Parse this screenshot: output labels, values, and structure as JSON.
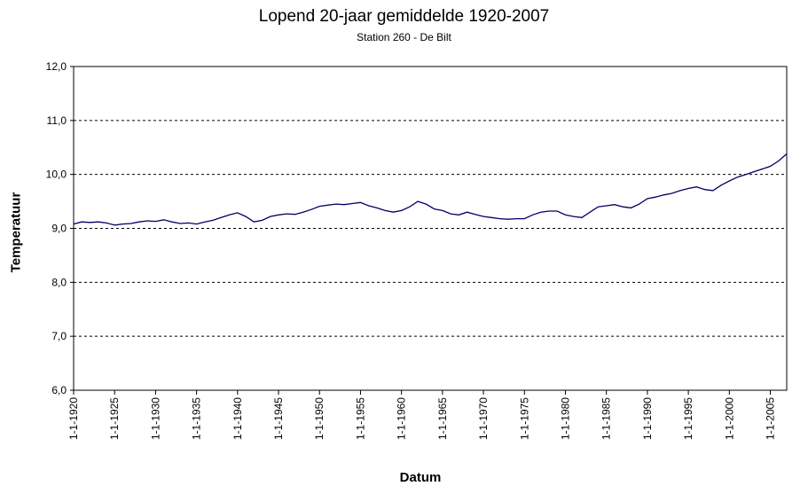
{
  "chart_data": {
    "type": "line",
    "title": "Lopend 20-jaar gemiddelde 1920-2007",
    "subtitle": "Station 260 - De Bilt",
    "xlabel": "Datum",
    "ylabel": "Temperatuur",
    "ylim": [
      6.0,
      12.0
    ],
    "y_ticks": [
      "6,0",
      "7,0",
      "8,0",
      "9,0",
      "10,0",
      "11,0",
      "12,0"
    ],
    "x_ticks": [
      "1-1-1920",
      "1-1-1925",
      "1-1-1930",
      "1-1-1935",
      "1-1-1940",
      "1-1-1945",
      "1-1-1950",
      "1-1-1955",
      "1-1-1960",
      "1-1-1965",
      "1-1-1970",
      "1-1-1975",
      "1-1-1980",
      "1-1-1985",
      "1-1-1990",
      "1-1-1995",
      "1-1-2000",
      "1-1-2005"
    ],
    "xlim": [
      "1-1-1920",
      "1-1-2007"
    ],
    "grid": "horizontal dashed",
    "line_color": "#000066",
    "series": [
      {
        "x": [
          1920,
          1921,
          1922,
          1923,
          1924,
          1925,
          1926,
          1927,
          1928,
          1929,
          1930,
          1931,
          1932,
          1933,
          1934,
          1935,
          1936,
          1937,
          1938,
          1939,
          1940,
          1941,
          1942,
          1943,
          1944,
          1945,
          1946,
          1947,
          1948,
          1949,
          1950,
          1951,
          1952,
          1953,
          1954,
          1955,
          1956,
          1957,
          1958,
          1959,
          1960,
          1961,
          1962,
          1963,
          1964,
          1965,
          1966,
          1967,
          1968,
          1969,
          1970,
          1971,
          1972,
          1973,
          1974,
          1975,
          1976,
          1977,
          1978,
          1979,
          1980,
          1981,
          1982,
          1983,
          1984,
          1985,
          1986,
          1987,
          1988,
          1989,
          1990,
          1991,
          1992,
          1993,
          1994,
          1995,
          1996,
          1997,
          1998,
          1999,
          2000,
          2001,
          2002,
          2003,
          2004,
          2005,
          2006,
          2007
        ],
        "values": [
          9.08,
          9.12,
          9.11,
          9.12,
          9.1,
          9.06,
          9.08,
          9.09,
          9.12,
          9.14,
          9.13,
          9.16,
          9.12,
          9.09,
          9.1,
          9.08,
          9.12,
          9.15,
          9.2,
          9.25,
          9.29,
          9.22,
          9.12,
          9.15,
          9.22,
          9.25,
          9.27,
          9.26,
          9.3,
          9.35,
          9.41,
          9.43,
          9.45,
          9.44,
          9.46,
          9.48,
          9.42,
          9.38,
          9.33,
          9.3,
          9.33,
          9.4,
          9.5,
          9.45,
          9.36,
          9.33,
          9.27,
          9.25,
          9.3,
          9.26,
          9.22,
          9.2,
          9.18,
          9.17,
          9.18,
          9.18,
          9.25,
          9.3,
          9.32,
          9.32,
          9.25,
          9.22,
          9.2,
          9.3,
          9.4,
          9.42,
          9.44,
          9.4,
          9.38,
          9.45,
          9.55,
          9.58,
          9.62,
          9.65,
          9.7,
          9.74,
          9.77,
          9.72,
          9.7,
          9.8,
          9.88,
          9.95,
          10.0,
          10.05,
          10.1,
          10.15,
          10.25,
          10.38
        ]
      }
    ]
  }
}
